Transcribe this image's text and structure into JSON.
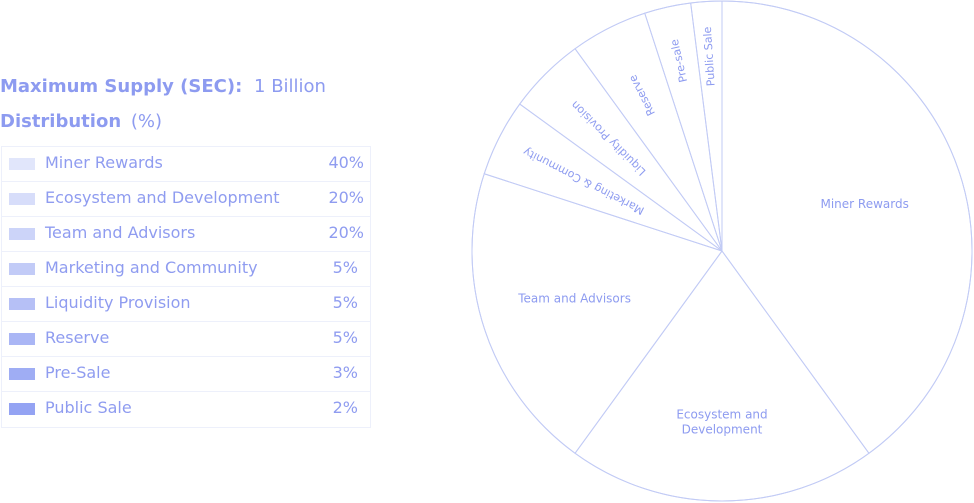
{
  "supply": {
    "label": "Maximum Supply (SEC):",
    "value": "1 Billion"
  },
  "distribution": {
    "title": "Distribution",
    "unit": "(%)"
  },
  "colors": {
    "line": "#c2cbf5",
    "text": "#8d9bf0",
    "swatches": [
      "#e1e6fb",
      "#d7ddfa",
      "#ccd4f9",
      "#c2cbf7",
      "#b6c0f6",
      "#aab6f5",
      "#9fadf4",
      "#94a3f3"
    ]
  },
  "table": {
    "rows": [
      {
        "label": "Miner Rewards",
        "pct": "40%"
      },
      {
        "label": "Ecosystem and Development",
        "pct": "20%"
      },
      {
        "label": "Team and Advisors",
        "pct": "20%"
      },
      {
        "label": "Marketing and Community",
        "pct": "5%"
      },
      {
        "label": "Liquidity Provision",
        "pct": "5%"
      },
      {
        "label": "Reserve",
        "pct": "5%"
      },
      {
        "label": "Pre-Sale",
        "pct": "3%"
      },
      {
        "label": "Public Sale",
        "pct": "2%"
      }
    ]
  },
  "chart_data": {
    "type": "pie",
    "title": "",
    "slices": [
      {
        "label": "Miner Rewards",
        "value": 40
      },
      {
        "label": "Ecosystem and Development",
        "value": 20
      },
      {
        "label": "Team and Advisors",
        "value": 20
      },
      {
        "label": "Marketing & Community",
        "value": 5
      },
      {
        "label": "Liquidity Provision",
        "value": 5
      },
      {
        "label": "Reserve",
        "value": 5
      },
      {
        "label": "Pre-sale",
        "value": 3
      },
      {
        "label": "Public Sale",
        "value": 2
      }
    ]
  }
}
